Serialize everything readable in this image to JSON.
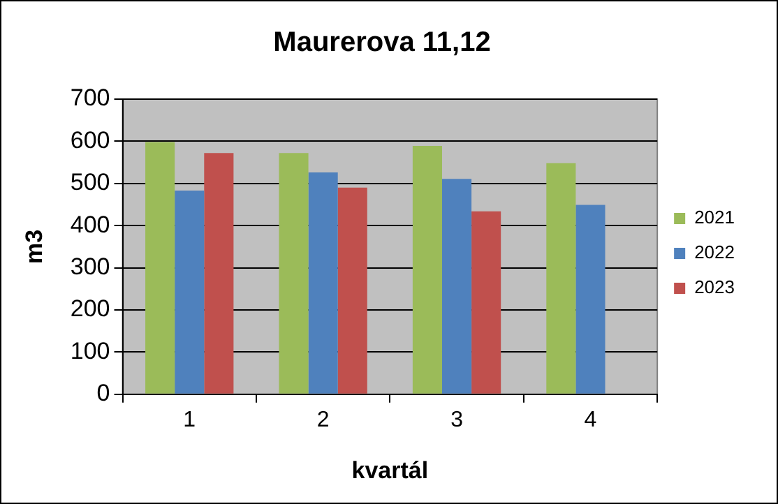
{
  "chart_data": {
    "type": "bar",
    "title": "Maurerova 11,12",
    "xlabel": "kvartál",
    "ylabel": "m3",
    "categories": [
      "1",
      "2",
      "3",
      "4"
    ],
    "series": [
      {
        "name": "2021",
        "color": "#9bbb59",
        "values": [
          598,
          572,
          589,
          548
        ]
      },
      {
        "name": "2022",
        "color": "#4f81bd",
        "values": [
          483,
          526,
          511,
          449
        ]
      },
      {
        "name": "2023",
        "color": "#c0504d",
        "values": [
          572,
          490,
          434,
          null
        ]
      }
    ],
    "ylim": [
      0,
      700
    ],
    "yticks": [
      0,
      100,
      200,
      300,
      400,
      500,
      600,
      700
    ],
    "grid": "y",
    "legend": "right"
  }
}
